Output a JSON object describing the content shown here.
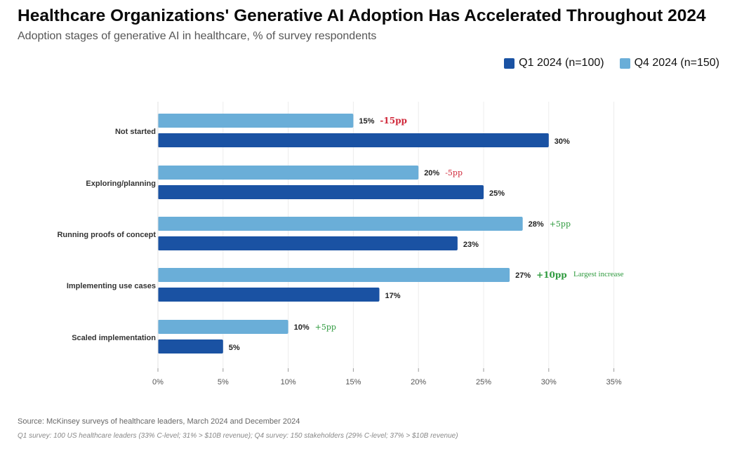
{
  "title": "Healthcare Organizations' Generative AI Adoption Has Accelerated Throughout 2024",
  "subtitle": "Adoption stages of generative AI in healthcare, % of survey respondents",
  "legend": [
    {
      "label": "Q1 2024 (n=100)",
      "color": "#1a52a3"
    },
    {
      "label": "Q4 2024 (n=150)",
      "color": "#6aaed8"
    }
  ],
  "chart_data": {
    "type": "bar",
    "orientation": "horizontal",
    "categories": [
      "Not started",
      "Exploring/planning",
      "Running proofs of concept",
      "Implementing use cases",
      "Scaled implementation"
    ],
    "series": [
      {
        "name": "Q4 2024 (n=150)",
        "color": "#6aaed8",
        "values": [
          15,
          20,
          28,
          27,
          10
        ]
      },
      {
        "name": "Q1 2024 (n=100)",
        "color": "#1a52a3",
        "values": [
          30,
          25,
          23,
          17,
          5
        ]
      }
    ],
    "value_labels": {
      "Q4 2024 (n=150)": [
        "15%",
        "20%",
        "28%",
        "27%",
        "10%"
      ],
      "Q1 2024 (n=100)": [
        "30%",
        "25%",
        "23%",
        "17%",
        "5%"
      ]
    },
    "changes": [
      {
        "text": "-15pp",
        "color": "#d0283a",
        "bold": true
      },
      {
        "text": "-5pp",
        "color": "#d0283a",
        "bold": false
      },
      {
        "text": "+5pp",
        "color": "#2e9a3e",
        "bold": false
      },
      {
        "text": "+10pp",
        "color": "#2e9a3e",
        "bold": true
      },
      {
        "text": "+5pp",
        "color": "#2e9a3e",
        "bold": false
      }
    ],
    "annotation": {
      "text": "Largest increase",
      "category_index": 3,
      "color": "#2e9a3e"
    },
    "xticks": [
      "0%",
      "5%",
      "10%",
      "15%",
      "20%",
      "25%",
      "30%",
      "35%"
    ],
    "xlim": [
      0,
      35
    ],
    "grid": true
  },
  "source": "Source: McKinsey surveys of healthcare leaders, March 2024 and December 2024",
  "note": "Q1 survey: 100 US healthcare leaders (33% C-level; 31% > $10B revenue); Q4 survey: 150 stakeholders (29% C-level; 37% > $10B revenue)"
}
